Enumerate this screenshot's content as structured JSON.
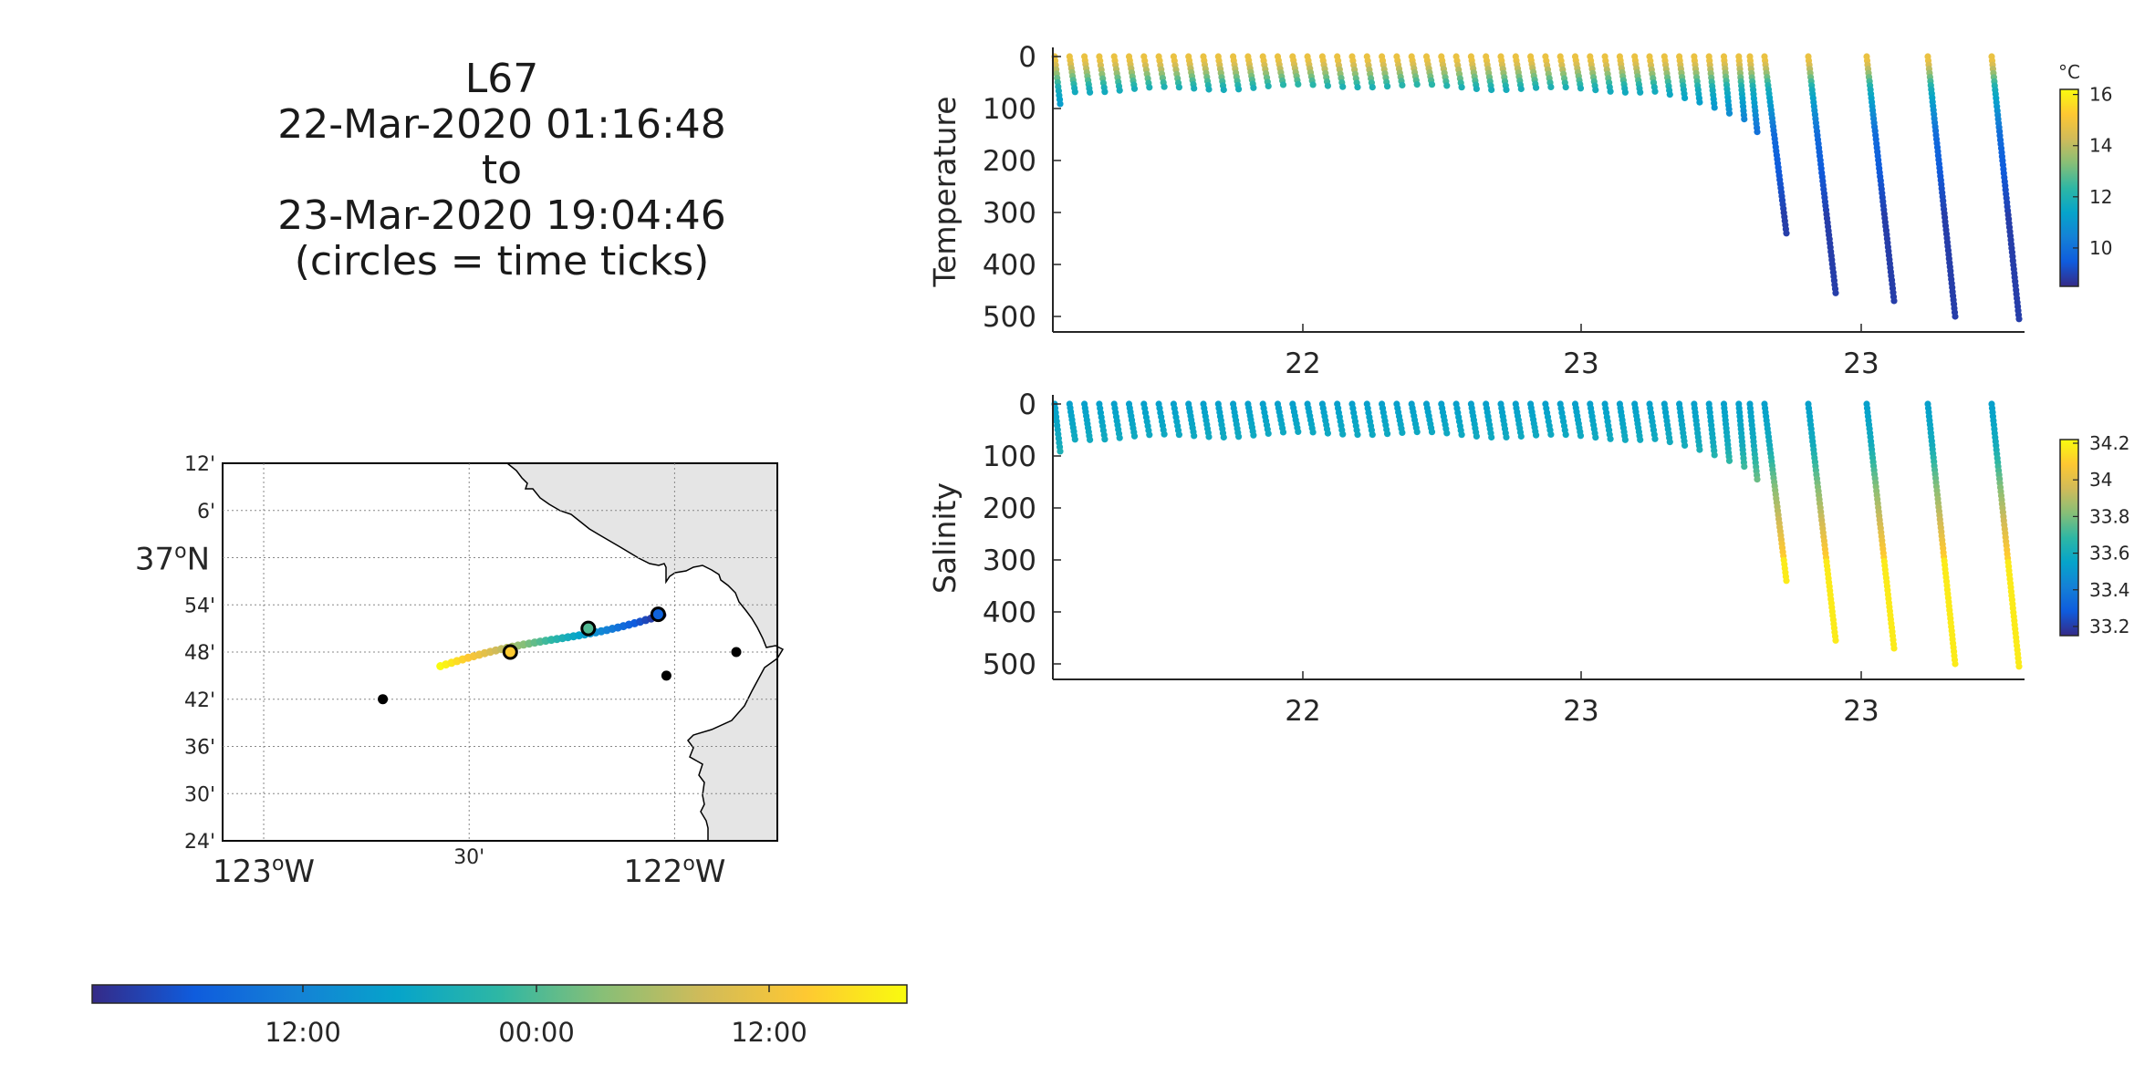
{
  "title": {
    "line1": "L67",
    "line2": "22-Mar-2020 01:16:48",
    "line3": "to",
    "line4": "23-Mar-2020 19:04:46",
    "line5": "(circles = time ticks)"
  },
  "chart_data": [
    {
      "type": "scatter",
      "name": "temperature-section",
      "ylabel": "Temperature",
      "y_reversed": true,
      "ylim": [
        0,
        520
      ],
      "y_ticks": [
        "0",
        "100",
        "200",
        "300",
        "400",
        "500"
      ],
      "x_tick_labels": [
        "22",
        "23",
        "23"
      ],
      "colorbar": {
        "unit": "°C",
        "range": [
          8.5,
          16.2
        ],
        "ticks": [
          "10",
          "12",
          "14",
          "16"
        ],
        "tick_values": [
          10,
          12,
          14,
          16
        ]
      },
      "profiles_shallow_count": 47,
      "profiles_deep": [
        {
          "max_depth": 145
        },
        {
          "max_depth": 340
        },
        {
          "max_depth": 455
        },
        {
          "max_depth": 470
        },
        {
          "max_depth": 500
        },
        {
          "max_depth": 505
        }
      ]
    },
    {
      "type": "scatter",
      "name": "salinity-section",
      "ylabel": "Salinity",
      "y_reversed": true,
      "ylim": [
        0,
        520
      ],
      "y_ticks": [
        "0",
        "100",
        "200",
        "300",
        "400",
        "500"
      ],
      "x_tick_labels": [
        "22",
        "23",
        "23"
      ],
      "colorbar": {
        "unit": "",
        "range": [
          33.15,
          34.22
        ],
        "ticks": [
          "33.2",
          "33.4",
          "33.6",
          "33.8",
          "34",
          "34.2"
        ],
        "tick_values": [
          33.2,
          33.4,
          33.6,
          33.8,
          34.0,
          34.2
        ]
      }
    },
    {
      "type": "scatter",
      "name": "track-map",
      "lat_ticks": [
        "12'",
        "6'",
        "37°N",
        "54'",
        "48'",
        "42'",
        "36'",
        "30'",
        "24'"
      ],
      "lat_values": [
        37.2,
        37.1,
        37.0,
        36.9,
        36.8,
        36.7,
        36.6,
        36.5,
        36.4
      ],
      "lon_ticks": [
        "123°W",
        "30'",
        "122°W"
      ],
      "lon_values": [
        -123.0,
        -122.5,
        -122.0
      ],
      "xlim": [
        -123.1,
        -121.75
      ],
      "ylim": [
        36.4,
        37.2
      ],
      "track_start": [
        -122.57,
        36.77
      ],
      "track_end": [
        -122.03,
        36.88
      ],
      "time_tick_circles": [
        [
          -122.4,
          36.8
        ],
        [
          -122.21,
          36.85
        ],
        [
          -122.04,
          36.88
        ]
      ],
      "stations": [
        [
          -122.71,
          36.7
        ],
        [
          -122.02,
          36.75
        ],
        [
          -121.85,
          36.8
        ]
      ],
      "time_colorbar_ticks": [
        "12:00",
        "00:00",
        "12:00"
      ]
    }
  ]
}
